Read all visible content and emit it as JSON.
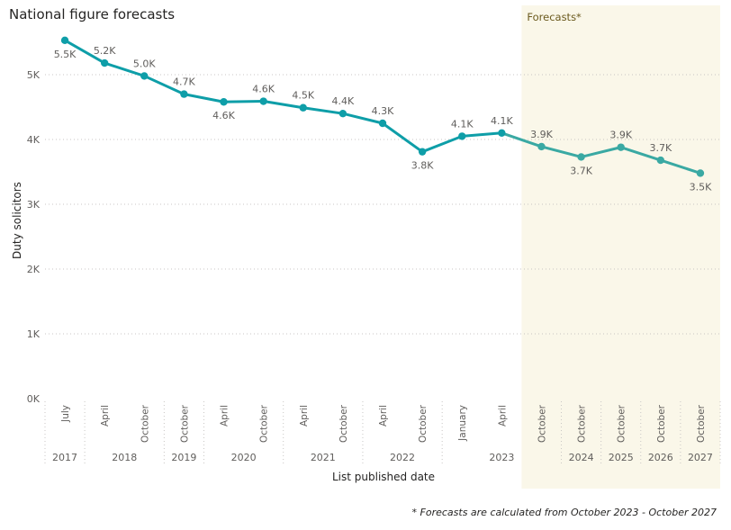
{
  "chart_data": {
    "type": "line",
    "title": "National figure forecasts",
    "xlabel": "List published date",
    "ylabel": "Duty solicitors",
    "ylim": [
      0,
      5600
    ],
    "y_ticks": [
      "0K",
      "1K",
      "2K",
      "3K",
      "4K",
      "5K"
    ],
    "y_tick_values": [
      0,
      1000,
      2000,
      3000,
      4000,
      5000
    ],
    "grid": "horizontal dotted",
    "points": [
      {
        "period": "July",
        "year": "2017",
        "value": 5530,
        "label": "5.5K",
        "forecast": false,
        "label_pos": "below"
      },
      {
        "period": "April",
        "year": "2018",
        "value": 5180,
        "label": "5.2K",
        "forecast": false,
        "label_pos": "above"
      },
      {
        "period": "October",
        "year": "2018",
        "value": 4980,
        "label": "5.0K",
        "forecast": false,
        "label_pos": "above"
      },
      {
        "period": "October",
        "year": "2019",
        "value": 4700,
        "label": "4.7K",
        "forecast": false,
        "label_pos": "above"
      },
      {
        "period": "April",
        "year": "2020",
        "value": 4580,
        "label": "4.6K",
        "forecast": false,
        "label_pos": "below"
      },
      {
        "period": "October",
        "year": "2020",
        "value": 4590,
        "label": "4.6K",
        "forecast": false,
        "label_pos": "above"
      },
      {
        "period": "April",
        "year": "2021",
        "value": 4490,
        "label": "4.5K",
        "forecast": false,
        "label_pos": "above"
      },
      {
        "period": "October",
        "year": "2021",
        "value": 4400,
        "label": "4.4K",
        "forecast": false,
        "label_pos": "above"
      },
      {
        "period": "April",
        "year": "2022",
        "value": 4250,
        "label": "4.3K",
        "forecast": false,
        "label_pos": "above"
      },
      {
        "period": "October",
        "year": "2022",
        "value": 3810,
        "label": "3.8K",
        "forecast": false,
        "label_pos": "below"
      },
      {
        "period": "January",
        "year": "2023",
        "value": 4050,
        "label": "4.1K",
        "forecast": false,
        "label_pos": "above"
      },
      {
        "period": "April",
        "year": "2023",
        "value": 4100,
        "label": "4.1K",
        "forecast": false,
        "label_pos": "above"
      },
      {
        "period": "October",
        "year": "2023",
        "value": 3890,
        "label": "3.9K",
        "forecast": true,
        "label_pos": "above"
      },
      {
        "period": "October",
        "year": "2024",
        "value": 3730,
        "label": "3.7K",
        "forecast": true,
        "label_pos": "below"
      },
      {
        "period": "October",
        "year": "2025",
        "value": 3880,
        "label": "3.9K",
        "forecast": true,
        "label_pos": "above"
      },
      {
        "period": "October",
        "year": "2026",
        "value": 3680,
        "label": "3.7K",
        "forecast": true,
        "label_pos": "above"
      },
      {
        "period": "October",
        "year": "2027",
        "value": 3480,
        "label": "3.5K",
        "forecast": true,
        "label_pos": "below"
      }
    ],
    "year_groups": [
      {
        "year": "2017",
        "count": 1
      },
      {
        "year": "2018",
        "count": 2
      },
      {
        "year": "2019",
        "count": 1
      },
      {
        "year": "2020",
        "count": 2
      },
      {
        "year": "2021",
        "count": 2
      },
      {
        "year": "2022",
        "count": 2
      },
      {
        "year": "2023",
        "count": 3
      },
      {
        "year": "2024",
        "count": 1
      },
      {
        "year": "2025",
        "count": 1
      },
      {
        "year": "2026",
        "count": 1
      },
      {
        "year": "2027",
        "count": 1
      }
    ],
    "forecast_band": {
      "start_index": 12,
      "label": "Forecasts*",
      "color": "#faf7e9"
    },
    "colors": {
      "actual": "#0e9ea8",
      "forecast": "#3aa9a3"
    }
  },
  "footnote": "* Forecasts are calculated from October 2023 - October 2027"
}
